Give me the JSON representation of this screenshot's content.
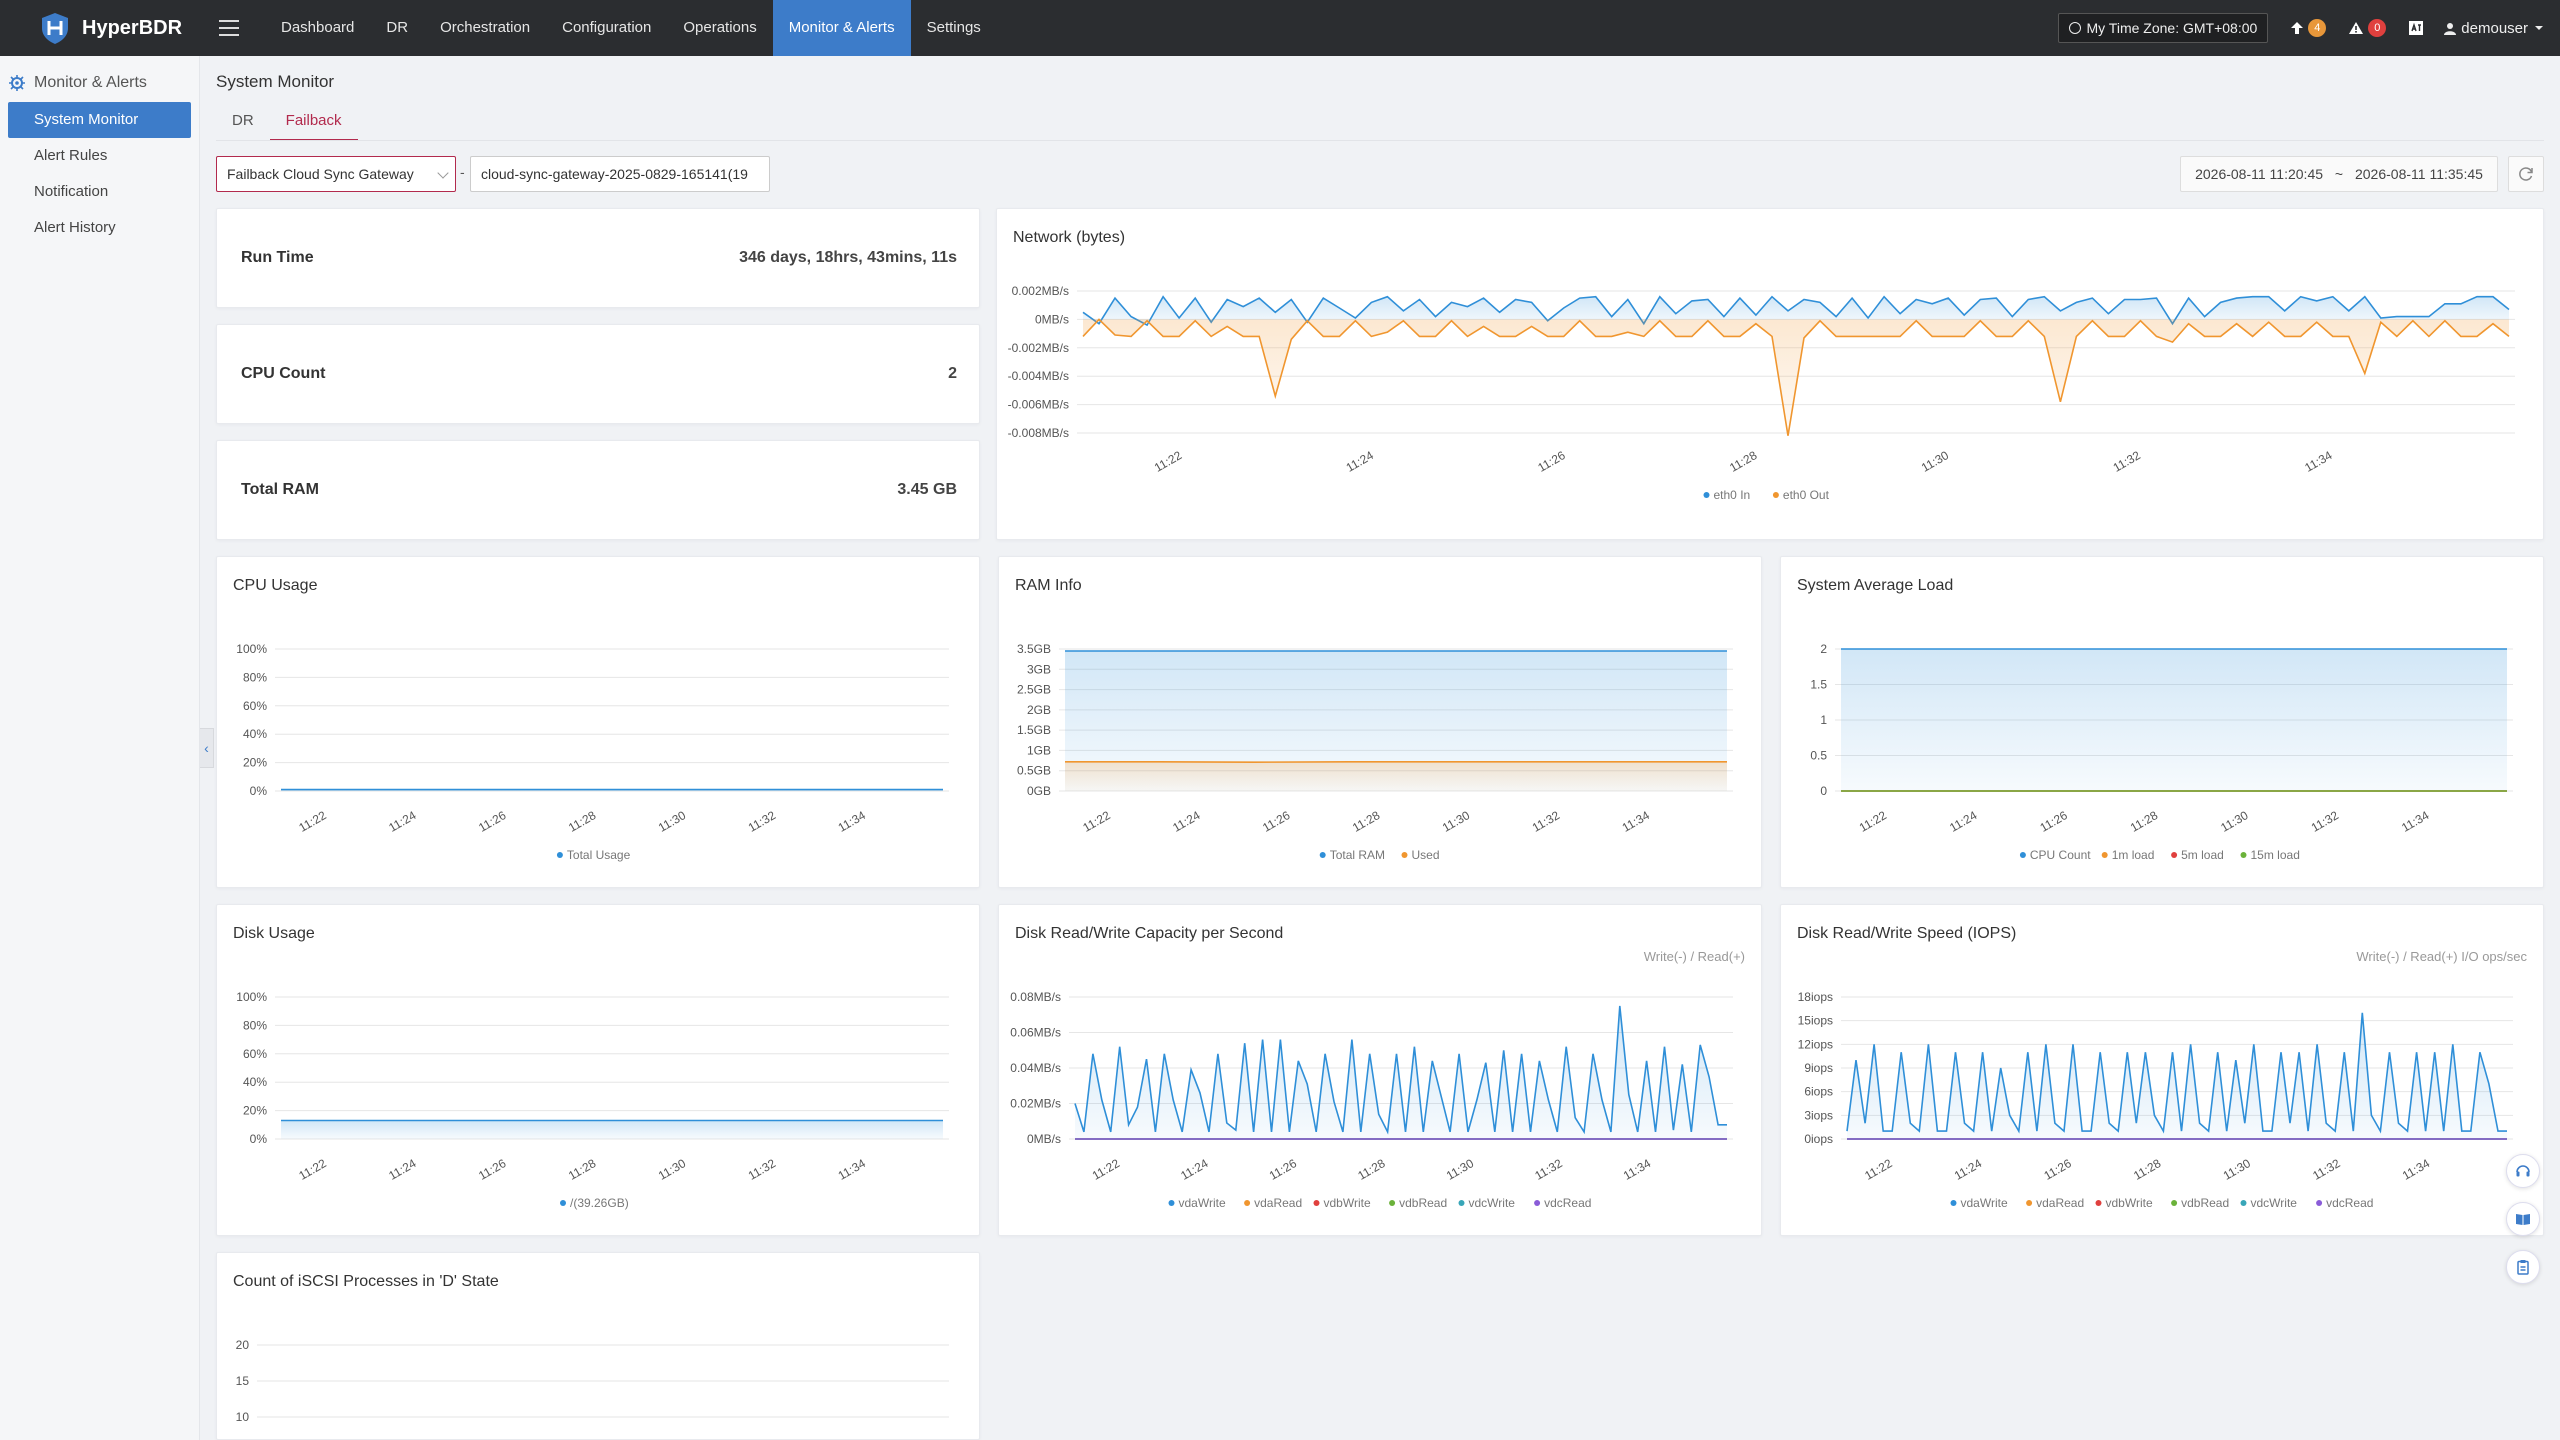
{
  "brand": {
    "name": "HyperBDR"
  },
  "nav": {
    "items": [
      "Dashboard",
      "DR",
      "Orchestration",
      "Configuration",
      "Operations",
      "Monitor & Alerts",
      "Settings"
    ],
    "active": "Monitor & Alerts"
  },
  "topright": {
    "timezone": "My Time Zone: GMT+08:00",
    "upload_count": "4",
    "alert_count": "0",
    "user": "demouser"
  },
  "sidebar": {
    "section": "Monitor & Alerts",
    "items": [
      "System Monitor",
      "Alert Rules",
      "Notification",
      "Alert History"
    ]
  },
  "page": {
    "title": "System Monitor",
    "tabs": [
      "DR",
      "Failback"
    ],
    "active_tab": "Failback"
  },
  "filters": {
    "gateway_type": "Failback Cloud Sync Gateway",
    "gateway_name": "cloud-sync-gateway-2025-0829-165141(19",
    "separator": "-",
    "date_start": "2026-08-11 11:20:45",
    "date_sep": "~",
    "date_end": "2026-08-11 11:35:45"
  },
  "stats": {
    "runtime_label": "Run Time",
    "runtime_value": "346 days, 18hrs, 43mins, 11s",
    "cpu_label": "CPU Count",
    "cpu_value": "2",
    "ram_label": "Total RAM",
    "ram_value": "3.45 GB"
  },
  "time_ticks": [
    "11:22",
    "11:24",
    "11:26",
    "11:28",
    "11:30",
    "11:32",
    "11:34"
  ],
  "colors": {
    "blue": "#2f8fd8",
    "orange": "#f0962f",
    "red": "#e0403e",
    "green": "#6bb23a",
    "teal": "#38a6b8",
    "purple": "#8a5cd8"
  },
  "chart_data": [
    {
      "id": "network",
      "type": "line",
      "title": "Network (bytes)",
      "yticks": [
        "0.002MB/s",
        "0MB/s",
        "-0.002MB/s",
        "-0.004MB/s",
        "-0.006MB/s",
        "-0.008MB/s"
      ],
      "ylim": [
        -0.008,
        0.002
      ],
      "series": [
        {
          "name": "eth0 In",
          "color": "#2f8fd8",
          "values": [
            0.0005,
            -0.0003,
            0.0015,
            0.0002,
            -0.0004,
            0.0016,
            0.0001,
            0.0015,
            -0.0002,
            0.0014,
            0.0009,
            0.0015,
            0.0005,
            0.0014,
            -0.0002,
            0.0015,
            0.0008,
            0.0001,
            0.0012,
            0.0016,
            0.0006,
            0.0014,
            0.0002,
            0.0012,
            0.0009,
            0.0015,
            0.0005,
            0.0014,
            0.0012,
            -0.0001,
            0.0008,
            0.0015,
            0.0016,
            0.0002,
            0.0014,
            -0.0003,
            0.0016,
            0.0004,
            0.0013,
            0.0014,
            0.0002,
            0.0015,
            0.0003,
            0.0016,
            0.0006,
            0.0014,
            0.0012,
            0.0002,
            0.0015,
            0.0001,
            0.0016,
            0.0004,
            0.0014,
            0.0011,
            0.0015,
            0.0003,
            0.0014,
            0.0015,
            0.0002,
            0.0014,
            0.0016,
            0.0006,
            0.0012,
            0.0015,
            0.0004,
            0.0014,
            0.0014,
            0.0015,
            -0.0003,
            0.0015,
            0.0002,
            0.0012,
            0.0015,
            0.0016,
            0.0016,
            0.0006,
            0.0016,
            0.0013,
            0.0016,
            0.0006,
            0.0016,
            0.0001,
            0.0002,
            0.0002,
            0.0002,
            0.0011,
            0.0011,
            0.0016,
            0.0016,
            0.0007
          ]
        },
        {
          "name": "eth0 Out",
          "color": "#f0962f",
          "values": [
            -0.0012,
            0.0,
            -0.0011,
            -0.0012,
            -0.0001,
            -0.0012,
            -0.0012,
            -0.0001,
            -0.0012,
            -0.0005,
            -0.0012,
            -0.0012,
            -0.0054,
            -0.0014,
            -0.0001,
            -0.0012,
            -0.0012,
            -0.0001,
            -0.0012,
            -0.0009,
            -0.0001,
            -0.0012,
            -0.0012,
            -0.0001,
            -0.0012,
            -0.0005,
            -0.0012,
            -0.0012,
            -0.0005,
            -0.0012,
            -0.0012,
            -0.0001,
            -0.0012,
            -0.0012,
            -0.0009,
            -0.0012,
            -0.0001,
            -0.0012,
            -0.0012,
            -0.0001,
            -0.0012,
            -0.0012,
            -0.0003,
            -0.0012,
            -0.0082,
            -0.0013,
            -0.0001,
            -0.0012,
            -0.0012,
            -0.0012,
            -0.0012,
            -0.0012,
            -0.0001,
            -0.0012,
            -0.0012,
            -0.0012,
            -0.0001,
            -0.0012,
            -0.0012,
            -0.0001,
            -0.0012,
            -0.0058,
            -0.0012,
            -0.0001,
            -0.0012,
            -0.0012,
            -0.0001,
            -0.0012,
            -0.0016,
            -0.0003,
            -0.0012,
            -0.0012,
            -0.0003,
            -0.0012,
            -0.0002,
            -0.0012,
            -0.0012,
            -0.0002,
            -0.0012,
            -0.0012,
            -0.0038,
            -0.0002,
            -0.0012,
            -0.0001,
            -0.0012,
            -0.0001,
            -0.0012,
            -0.0012,
            -0.0003,
            -0.0012
          ]
        }
      ]
    },
    {
      "id": "cpu",
      "type": "area",
      "title": "CPU Usage",
      "yticks": [
        "100%",
        "80%",
        "60%",
        "40%",
        "20%",
        "0%"
      ],
      "ylim": [
        0,
        100
      ],
      "series": [
        {
          "name": "Total Usage",
          "color": "#2f8fd8",
          "values": [
            1,
            1,
            1,
            1,
            1,
            1,
            1,
            1,
            1,
            1,
            1,
            1,
            1,
            1,
            1,
            1
          ]
        }
      ]
    },
    {
      "id": "ram",
      "type": "area",
      "title": "RAM Info",
      "yticks": [
        "3.5GB",
        "3GB",
        "2.5GB",
        "2GB",
        "1.5GB",
        "1GB",
        "0.5GB",
        "0GB"
      ],
      "ylim": [
        0,
        3.5
      ],
      "series": [
        {
          "name": "Total RAM",
          "color": "#2f8fd8",
          "values": [
            3.45,
            3.45,
            3.45,
            3.45,
            3.45,
            3.45,
            3.45,
            3.45
          ]
        },
        {
          "name": "Used",
          "color": "#f0962f",
          "values": [
            0.72,
            0.72,
            0.71,
            0.72,
            0.72,
            0.72,
            0.72,
            0.72
          ]
        }
      ]
    },
    {
      "id": "load",
      "type": "area",
      "title": "System Average Load",
      "yticks": [
        "2",
        "1.5",
        "1",
        "0.5",
        "0"
      ],
      "ylim": [
        0,
        2
      ],
      "series": [
        {
          "name": "CPU Count",
          "color": "#2f8fd8",
          "values": [
            2,
            2,
            2,
            2,
            2,
            2,
            2,
            2
          ]
        },
        {
          "name": "1m load",
          "color": "#f0962f",
          "values": [
            0,
            0,
            0,
            0,
            0,
            0,
            0,
            0
          ]
        },
        {
          "name": "5m load",
          "color": "#e0403e",
          "values": [
            0,
            0,
            0,
            0,
            0,
            0,
            0,
            0
          ]
        },
        {
          "name": "15m load",
          "color": "#6bb23a",
          "values": [
            0,
            0,
            0,
            0,
            0,
            0,
            0,
            0
          ]
        }
      ]
    },
    {
      "id": "disk",
      "type": "area",
      "title": "Disk Usage",
      "yticks": [
        "100%",
        "80%",
        "60%",
        "40%",
        "20%",
        "0%"
      ],
      "ylim": [
        0,
        100
      ],
      "series": [
        {
          "name": "/(39.26GB)",
          "color": "#2f8fd8",
          "values": [
            13,
            13,
            13,
            13,
            13,
            13,
            13,
            13
          ]
        }
      ]
    },
    {
      "id": "diskcap",
      "type": "line",
      "title": "Disk Read/Write Capacity per Second",
      "subtitle": "Write(-) / Read(+)",
      "yticks": [
        "0.08MB/s",
        "0.06MB/s",
        "0.04MB/s",
        "0.02MB/s",
        "0MB/s"
      ],
      "ylim": [
        0,
        0.08
      ],
      "series": [
        {
          "name": "vdaWrite",
          "color": "#2f8fd8",
          "values": [
            0.02,
            0.004,
            0.048,
            0.022,
            0.004,
            0.052,
            0.008,
            0.018,
            0.045,
            0.004,
            0.048,
            0.022,
            0.004,
            0.039,
            0.026,
            0.004,
            0.048,
            0.009,
            0.005,
            0.054,
            0.004,
            0.056,
            0.004,
            0.056,
            0.004,
            0.044,
            0.031,
            0.004,
            0.048,
            0.021,
            0.004,
            0.056,
            0.004,
            0.048,
            0.014,
            0.004,
            0.048,
            0.004,
            0.052,
            0.004,
            0.044,
            0.024,
            0.004,
            0.048,
            0.004,
            0.022,
            0.043,
            0.004,
            0.05,
            0.004,
            0.048,
            0.004,
            0.044,
            0.022,
            0.004,
            0.052,
            0.012,
            0.004,
            0.048,
            0.022,
            0.004,
            0.075,
            0.025,
            0.004,
            0.044,
            0.004,
            0.052,
            0.005,
            0.042,
            0.004,
            0.053,
            0.035,
            0.008,
            0.008
          ]
        },
        {
          "name": "vdaRead",
          "color": "#f0962f",
          "values": [
            0,
            0,
            0,
            0,
            0,
            0,
            0,
            0
          ]
        },
        {
          "name": "vdbWrite",
          "color": "#e0403e",
          "values": [
            0,
            0,
            0,
            0,
            0,
            0,
            0,
            0
          ]
        },
        {
          "name": "vdbRead",
          "color": "#6bb23a",
          "values": [
            0,
            0,
            0,
            0,
            0,
            0,
            0,
            0
          ]
        },
        {
          "name": "vdcWrite",
          "color": "#38a6b8",
          "values": [
            0,
            0,
            0,
            0,
            0,
            0,
            0,
            0
          ]
        },
        {
          "name": "vdcRead",
          "color": "#8a5cd8",
          "values": [
            0,
            0,
            0,
            0,
            0,
            0,
            0,
            0
          ]
        }
      ]
    },
    {
      "id": "iops",
      "type": "line",
      "title": "Disk Read/Write Speed (IOPS)",
      "subtitle": "Write(-) / Read(+) I/O ops/sec",
      "yticks": [
        "18iops",
        "15iops",
        "12iops",
        "9iops",
        "6iops",
        "3iops",
        "0iops"
      ],
      "ylim": [
        0,
        18
      ],
      "series": [
        {
          "name": "vdaWrite",
          "color": "#2f8fd8",
          "values": [
            1,
            10,
            2,
            12,
            1,
            1,
            11,
            2,
            1,
            12,
            1,
            1,
            11,
            2,
            1,
            11,
            1,
            9,
            3,
            1,
            11,
            1,
            12,
            2,
            1,
            12,
            1,
            1,
            11,
            2,
            1,
            11,
            2,
            11,
            3,
            1,
            11,
            1,
            12,
            2,
            1,
            11,
            1,
            10,
            2,
            12,
            1,
            1,
            11,
            2,
            11,
            1,
            12,
            2,
            1,
            11,
            1,
            16,
            3,
            1,
            11,
            2,
            1,
            11,
            1,
            11,
            1,
            12,
            1,
            1,
            11,
            7,
            1,
            1
          ]
        },
        {
          "name": "vdaRead",
          "color": "#f0962f",
          "values": [
            0,
            0,
            0,
            0,
            0,
            0,
            0,
            0
          ]
        },
        {
          "name": "vdbWrite",
          "color": "#e0403e",
          "values": [
            0,
            0,
            0,
            0,
            0,
            0,
            0,
            0
          ]
        },
        {
          "name": "vdbRead",
          "color": "#6bb23a",
          "values": [
            0,
            0,
            0,
            0,
            0,
            0,
            0,
            0
          ]
        },
        {
          "name": "vdcWrite",
          "color": "#38a6b8",
          "values": [
            0,
            0,
            0,
            0,
            0,
            0,
            0,
            0
          ]
        },
        {
          "name": "vdcRead",
          "color": "#8a5cd8",
          "values": [
            0,
            0,
            0,
            0,
            0,
            0,
            0,
            0
          ]
        }
      ]
    },
    {
      "id": "iscsi",
      "type": "line",
      "title": "Count of iSCSI Processes in 'D' State",
      "yticks": [
        "20",
        "15",
        "10"
      ],
      "ylim": [
        0,
        20
      ],
      "series": []
    }
  ]
}
